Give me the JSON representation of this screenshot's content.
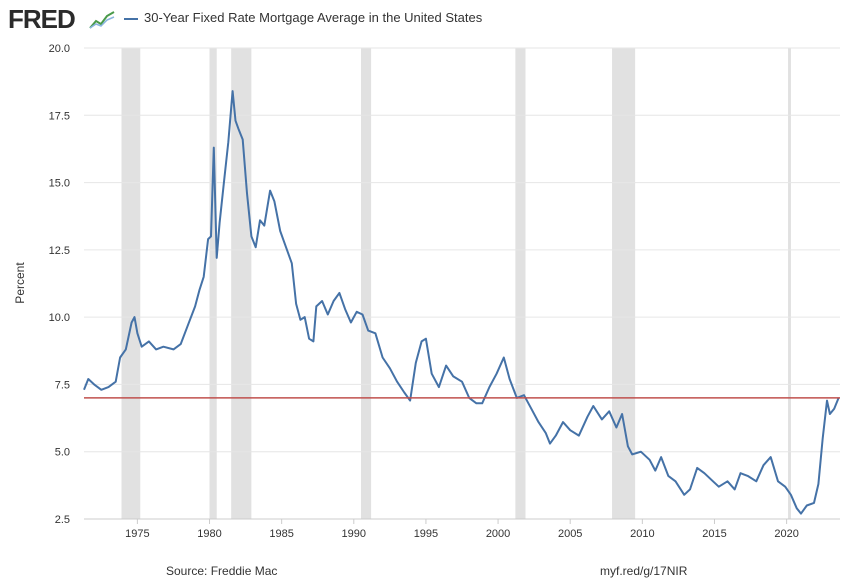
{
  "header": {
    "logo_text": "FRED",
    "legend_label": "30-Year Fixed Rate Mortgage Average in the United States"
  },
  "footer": {
    "source": "Source: Freddie Mac",
    "link": "myf.red/g/17NIR"
  },
  "colors": {
    "series": "#4572a7",
    "reference": "#c0504d",
    "recession": "#e1e1e1",
    "grid": "#e6e6e6"
  },
  "chart_data": {
    "type": "line",
    "title": "30-Year Fixed Rate Mortgage Average in the United States",
    "xlabel": "",
    "ylabel": "Percent",
    "xlim": [
      1971.3,
      2023.7
    ],
    "ylim": [
      2.5,
      20.0
    ],
    "yticks": [
      2.5,
      5.0,
      7.5,
      10.0,
      12.5,
      15.0,
      17.5,
      20.0
    ],
    "ytick_labels": [
      "2.5",
      "5.0",
      "7.5",
      "10.0",
      "12.5",
      "15.0",
      "17.5",
      "20.0"
    ],
    "xticks": [
      1975,
      1980,
      1985,
      1990,
      1995,
      2000,
      2005,
      2010,
      2015,
      2020
    ],
    "xtick_labels": [
      "1975",
      "1980",
      "1985",
      "1990",
      "1995",
      "2000",
      "2005",
      "2010",
      "2015",
      "2020"
    ],
    "grid": true,
    "legend_position": "top-left",
    "recessions": [
      [
        1973.9,
        1975.2
      ],
      [
        1980.0,
        1980.5
      ],
      [
        1981.5,
        1982.9
      ],
      [
        1990.5,
        1991.2
      ],
      [
        2001.2,
        2001.9
      ],
      [
        2007.9,
        2009.5
      ],
      [
        2020.1,
        2020.3
      ]
    ],
    "reference_line": 7.0,
    "series": [
      {
        "name": "30-Year Fixed Rate Mortgage Average in the United States",
        "x": [
          1971.3,
          1971.6,
          1972.0,
          1972.5,
          1973.0,
          1973.5,
          1973.8,
          1974.2,
          1974.6,
          1974.8,
          1975.0,
          1975.3,
          1975.8,
          1976.3,
          1976.8,
          1977.5,
          1978.0,
          1978.5,
          1979.0,
          1979.3,
          1979.6,
          1979.9,
          1980.1,
          1980.3,
          1980.5,
          1980.7,
          1981.0,
          1981.3,
          1981.6,
          1981.8,
          1982.0,
          1982.3,
          1982.6,
          1982.9,
          1983.2,
          1983.5,
          1983.8,
          1984.2,
          1984.5,
          1984.9,
          1985.3,
          1985.7,
          1986.0,
          1986.3,
          1986.6,
          1986.9,
          1987.2,
          1987.4,
          1987.8,
          1988.2,
          1988.6,
          1989.0,
          1989.4,
          1989.8,
          1990.2,
          1990.6,
          1991.0,
          1991.5,
          1992.0,
          1992.5,
          1993.0,
          1993.5,
          1993.9,
          1994.3,
          1994.7,
          1995.0,
          1995.4,
          1995.9,
          1996.4,
          1996.9,
          1997.5,
          1998.0,
          1998.5,
          1998.9,
          1999.4,
          1999.9,
          2000.4,
          2000.8,
          2001.3,
          2001.8,
          2002.3,
          2002.8,
          2003.3,
          2003.6,
          2004.0,
          2004.5,
          2005.0,
          2005.6,
          2006.2,
          2006.6,
          2007.2,
          2007.7,
          2008.2,
          2008.6,
          2009.0,
          2009.3,
          2009.9,
          2010.5,
          2010.9,
          2011.3,
          2011.8,
          2012.3,
          2012.9,
          2013.3,
          2013.8,
          2014.3,
          2014.9,
          2015.3,
          2015.9,
          2016.4,
          2016.8,
          2017.3,
          2017.9,
          2018.4,
          2018.9,
          2019.4,
          2019.9,
          2020.3,
          2020.7,
          2021.0,
          2021.4,
          2021.9,
          2022.2,
          2022.5,
          2022.8,
          2023.0,
          2023.3,
          2023.6
        ],
        "values": [
          7.3,
          7.7,
          7.5,
          7.3,
          7.4,
          7.6,
          8.5,
          8.8,
          9.8,
          10.0,
          9.4,
          8.9,
          9.1,
          8.8,
          8.9,
          8.8,
          9.0,
          9.7,
          10.4,
          11.0,
          11.5,
          12.9,
          13.0,
          16.3,
          12.2,
          13.5,
          15.0,
          16.5,
          18.4,
          17.3,
          17.0,
          16.6,
          14.6,
          13.0,
          12.6,
          13.6,
          13.4,
          14.7,
          14.3,
          13.2,
          12.6,
          12.0,
          10.5,
          9.9,
          10.0,
          9.2,
          9.1,
          10.4,
          10.6,
          10.1,
          10.6,
          10.9,
          10.3,
          9.8,
          10.2,
          10.1,
          9.5,
          9.4,
          8.5,
          8.1,
          7.6,
          7.2,
          6.9,
          8.3,
          9.1,
          9.2,
          7.9,
          7.4,
          8.2,
          7.8,
          7.6,
          7.0,
          6.8,
          6.8,
          7.4,
          7.9,
          8.5,
          7.7,
          7.0,
          7.1,
          6.6,
          6.1,
          5.7,
          5.3,
          5.6,
          6.1,
          5.8,
          5.6,
          6.3,
          6.7,
          6.2,
          6.5,
          5.9,
          6.4,
          5.2,
          4.9,
          5.0,
          4.7,
          4.3,
          4.8,
          4.1,
          3.9,
          3.4,
          3.6,
          4.4,
          4.2,
          3.9,
          3.7,
          3.9,
          3.6,
          4.2,
          4.1,
          3.9,
          4.5,
          4.8,
          3.9,
          3.7,
          3.4,
          2.9,
          2.7,
          3.0,
          3.1,
          3.8,
          5.5,
          6.9,
          6.4,
          6.6,
          7.0
        ]
      }
    ]
  }
}
